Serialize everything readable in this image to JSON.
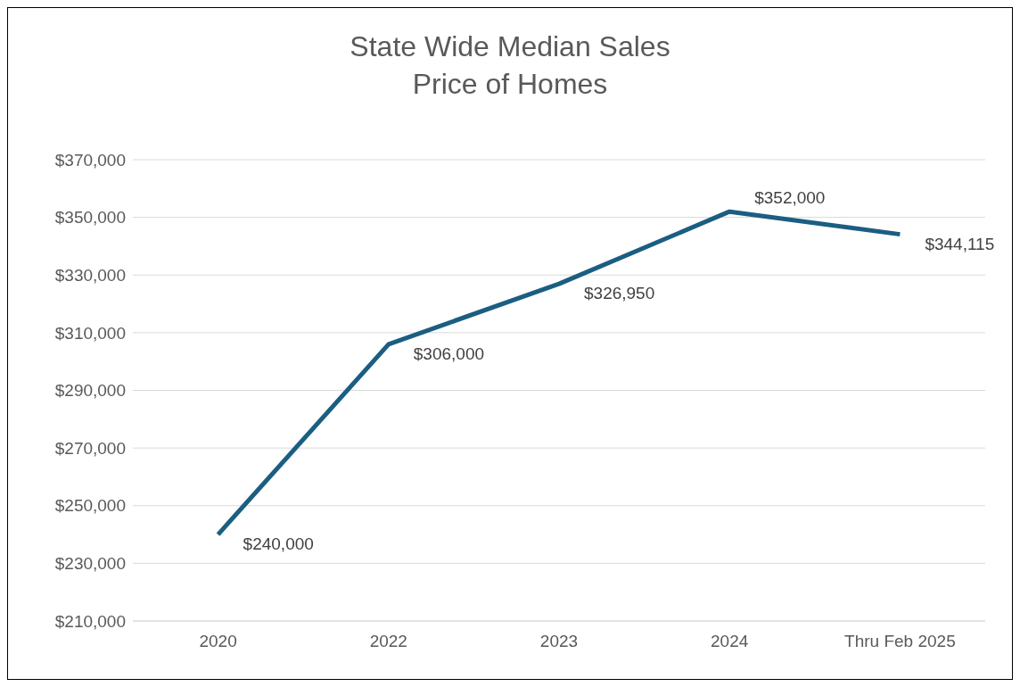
{
  "chart_data": {
    "type": "line",
    "title": "State Wide Median Sales\nPrice of Homes",
    "categories": [
      "2020",
      "2022",
      "2023",
      "2024",
      "Thru Feb 2025"
    ],
    "series": [
      {
        "color": "#1b5e82",
        "values": [
          240000,
          306000,
          326950,
          352000,
          344115
        ],
        "value_labels": [
          "$240,000",
          "$306,000",
          "$326,950",
          "$352,000",
          "$344,115"
        ]
      }
    ],
    "ylim": [
      210000,
      370000
    ],
    "yticks": [
      {
        "value": 210000,
        "label": "$210,000"
      },
      {
        "value": 230000,
        "label": "$230,000"
      },
      {
        "value": 250000,
        "label": "$250,000"
      },
      {
        "value": 270000,
        "label": "$270,000"
      },
      {
        "value": 290000,
        "label": "$290,000"
      },
      {
        "value": 310000,
        "label": "$310,000"
      },
      {
        "value": 330000,
        "label": "$330,000"
      },
      {
        "value": 350000,
        "label": "$350,000"
      },
      {
        "value": 370000,
        "label": "$370,000"
      }
    ],
    "grid": "y",
    "marker": "none",
    "line_style": "solid"
  }
}
